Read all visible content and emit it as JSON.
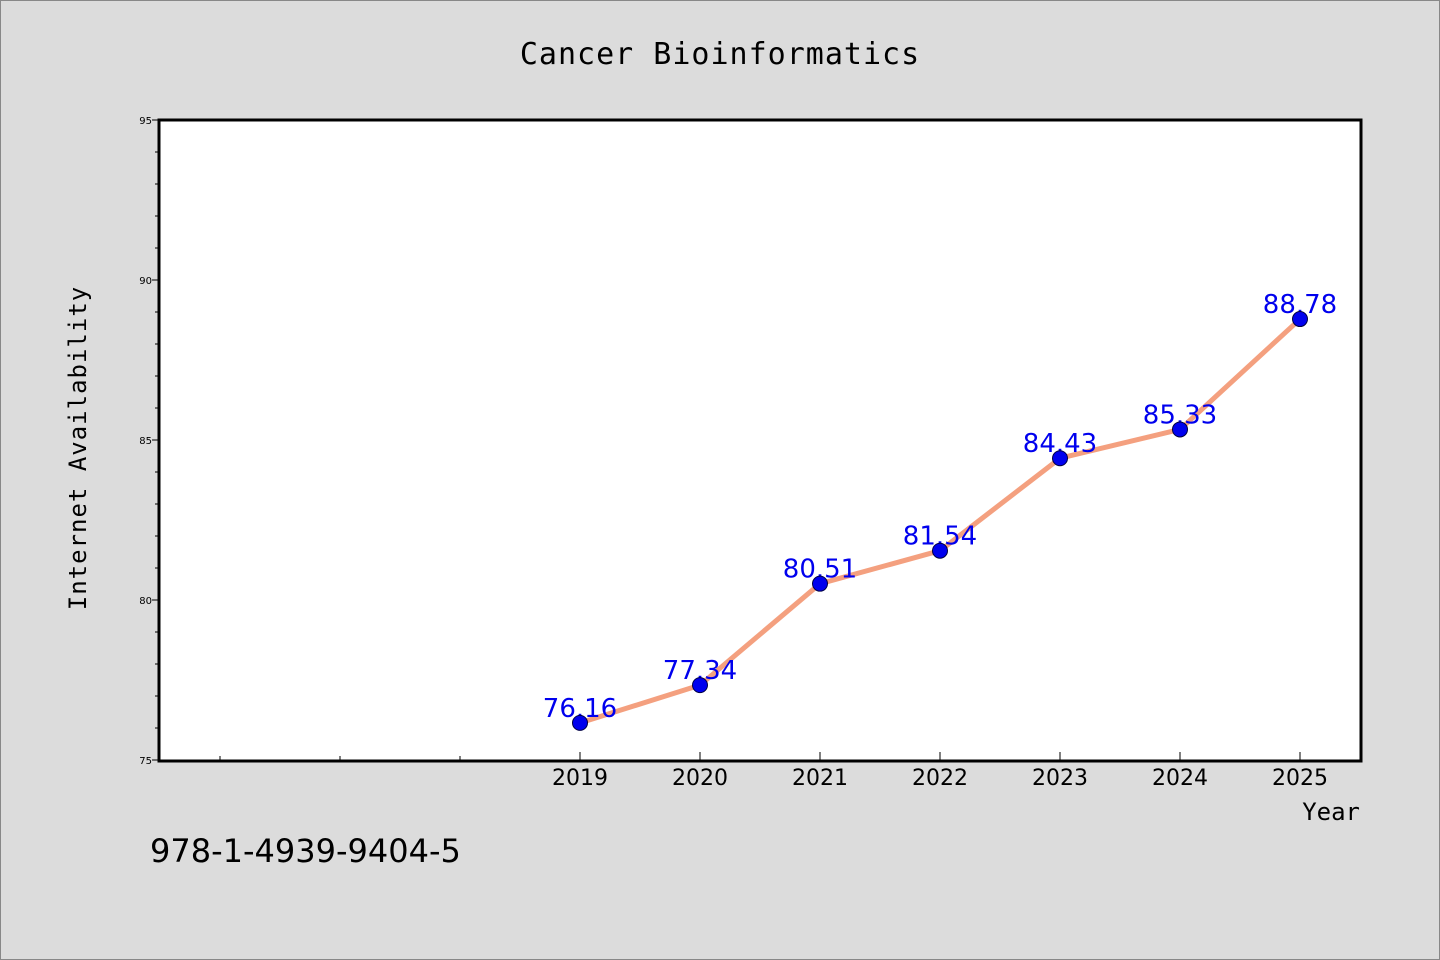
{
  "chart_data": {
    "type": "line",
    "title": "Cancer Bioinformatics",
    "xlabel": "Year",
    "ylabel": "Internet Availability",
    "categories": [
      "2019",
      "2020",
      "2021",
      "2022",
      "2023",
      "2024",
      "2025"
    ],
    "x_slots_before_data": 3,
    "series": [
      {
        "values": [
          76.16,
          77.34,
          80.51,
          81.54,
          84.43,
          85.33,
          88.78
        ],
        "data_labels": [
          "76.16",
          "77.34",
          "80.51",
          "81.54",
          "84.43",
          "85.33",
          "88.78"
        ]
      }
    ],
    "ylim": [
      75,
      95
    ],
    "yticks": [
      75,
      80,
      85,
      90,
      95
    ],
    "ytick_labels": [
      "75",
      "80",
      "85",
      "90",
      "95"
    ],
    "grid": false,
    "legend": "none",
    "colors": {
      "line": "#f4a07f",
      "marker": "#0000ee",
      "label": "#0000ee",
      "plot_bg": "#ffffff",
      "page_bg": "#dcdcdc"
    }
  },
  "footer": {
    "isbn": "978-1-4939-9404-5"
  }
}
